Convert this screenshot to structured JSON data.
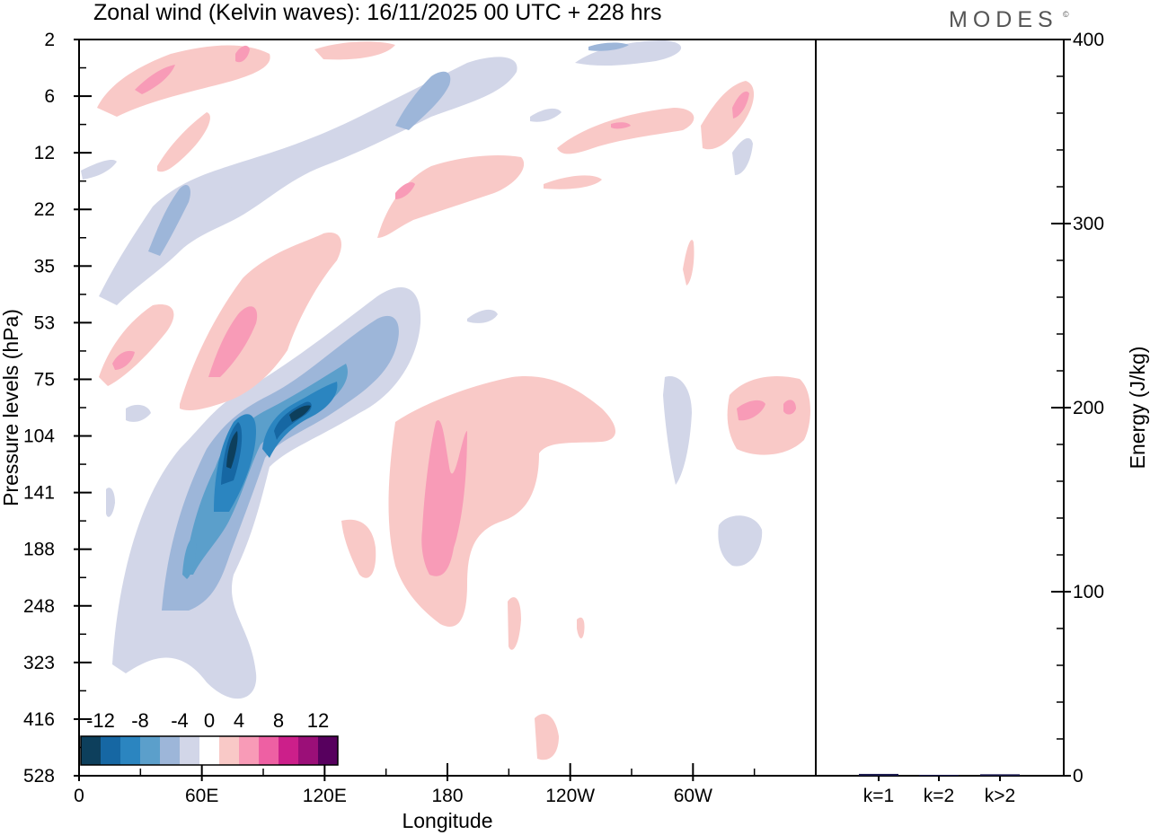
{
  "header": {
    "title": "Zonal wind (Kelvin waves):  16/11/2025  00 UTC  + 228 hrs",
    "brand": "MODES",
    "brand_mark": "©"
  },
  "chart_data": [
    {
      "type": "heatmap",
      "title": "Zonal wind (Kelvin waves):  16/11/2025  00 UTC  + 228 hrs",
      "xlabel": "Longitude",
      "ylabel": "Pressure levels (hPa)",
      "x_ticks": [
        "0",
        "60E",
        "120E",
        "180",
        "120W",
        "60W"
      ],
      "x_tick_values": [
        0,
        60,
        120,
        180,
        240,
        300
      ],
      "xlim": [
        0,
        360
      ],
      "y_ticks": [
        "2",
        "6",
        "12",
        "22",
        "35",
        "53",
        "75",
        "104",
        "141",
        "188",
        "248",
        "323",
        "416",
        "528"
      ],
      "y_order": "top-to-bottom",
      "colorbar": {
        "labels": [
          "-12",
          "-8",
          "-4",
          "0",
          "4",
          "8",
          "12"
        ],
        "levels": [
          -14,
          -12,
          -10,
          -8,
          -6,
          -4,
          -2,
          2,
          4,
          6,
          8,
          10,
          12,
          14
        ],
        "colors": [
          "#0d3f5c",
          "#1667a3",
          "#2b85c0",
          "#5b9fcb",
          "#9db6d9",
          "#d2d6e8",
          "#ffffff",
          "#f9c9c7",
          "#f89bb7",
          "#ee60a3",
          "#cc1f8a",
          "#9b0f78",
          "#57005e"
        ]
      },
      "features": [
        {
          "name": "negative-main-band",
          "sign": "easterly",
          "lon_range": [
            25,
            160
          ],
          "p_range": [
            53,
            320
          ],
          "peak": -14
        },
        {
          "name": "negative-upper-band",
          "sign": "easterly",
          "lon_range": [
            10,
            210
          ],
          "p_range": [
            2,
            75
          ],
          "peak": -7
        },
        {
          "name": "positive-central-lobe",
          "sign": "westerly",
          "lon_range": [
            150,
            265
          ],
          "p_range": [
            75,
            330
          ],
          "peak": 8
        },
        {
          "name": "positive-upper-left",
          "sign": "westerly",
          "lon_range": [
            10,
            120
          ],
          "p_range": [
            2,
            90
          ],
          "peak": 7
        },
        {
          "name": "positive-east-patch",
          "sign": "westerly",
          "lon_range": [
            318,
            360
          ],
          "p_range": [
            75,
            110
          ],
          "peak": 7
        }
      ]
    },
    {
      "type": "bar",
      "categories": [
        "k=1",
        "k=2",
        "k>2"
      ],
      "values": [
        1.0,
        0.5,
        0.8
      ],
      "ylabel": "Energy (J/kg)",
      "ylim": [
        0,
        400
      ],
      "y_ticks": [
        "0",
        "100",
        "200",
        "300",
        "400"
      ],
      "color": "#1a1a4e"
    }
  ]
}
